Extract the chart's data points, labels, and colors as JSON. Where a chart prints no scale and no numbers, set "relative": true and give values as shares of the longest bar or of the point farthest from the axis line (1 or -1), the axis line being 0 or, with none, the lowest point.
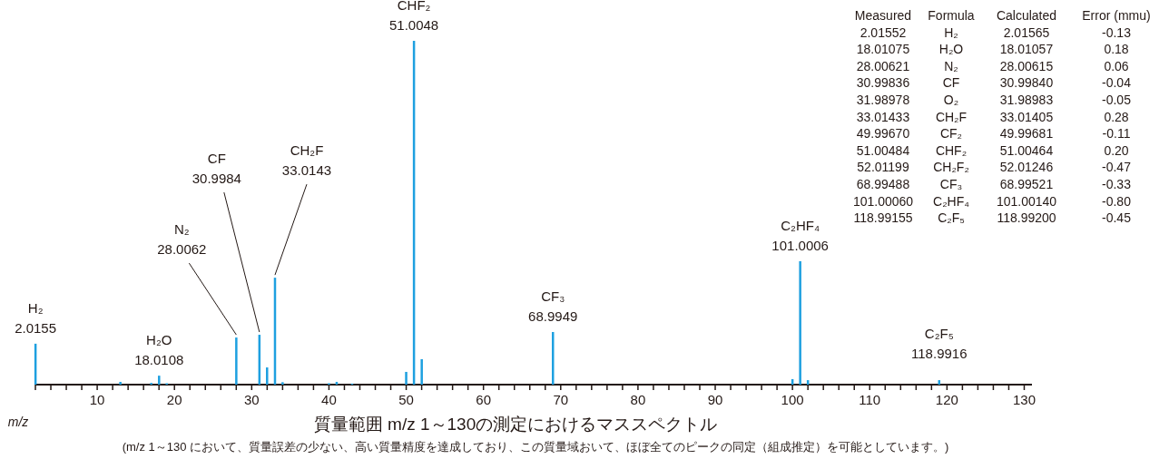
{
  "chart_data": {
    "type": "bar",
    "title": "質量範囲 m/z 1～130の測定におけるマススペクトル",
    "subtitle": "(m/z 1～130 において、質量誤差の少ない、高い質量精度を達成しており、この質量域おいて、ほぼ全てのピークの同定（組成推定）を可能としています。)",
    "xlabel": "m/z",
    "relative": true,
    "color": "#1ea0e0",
    "x": [
      2.01552,
      13,
      17,
      18.01075,
      19,
      28.00621,
      30.99836,
      31.98978,
      33.01433,
      34,
      40,
      41,
      43,
      49.9967,
      51.00484,
      52.01199,
      68.99488,
      100,
      101.0006,
      102,
      118.99155
    ],
    "values": [
      0.119,
      0.008,
      0.005,
      0.026,
      0.004,
      0.137,
      0.145,
      0.05,
      0.311,
      0.007,
      0.004,
      0.008,
      0.003,
      0.037,
      1,
      0.074,
      0.153,
      0.016,
      0.359,
      0.013,
      0.013
    ],
    "xlim": [
      2,
      131
    ],
    "xticks": [
      {
        "value": 2,
        "label": null
      },
      {
        "value": 4,
        "label": null
      },
      {
        "value": 6,
        "label": null
      },
      {
        "value": 8,
        "label": null
      },
      10,
      {
        "value": 12,
        "label": null
      },
      {
        "value": 14,
        "label": null
      },
      {
        "value": 16,
        "label": null
      },
      {
        "value": 18,
        "label": null
      },
      20,
      {
        "value": 22,
        "label": null
      },
      {
        "value": 24,
        "label": null
      },
      {
        "value": 26,
        "label": null
      },
      {
        "value": 28,
        "label": null
      },
      30,
      {
        "value": 32,
        "label": null
      },
      {
        "value": 34,
        "label": null
      },
      {
        "value": 36,
        "label": null
      },
      {
        "value": 38,
        "label": null
      },
      40,
      {
        "value": 42,
        "label": null
      },
      {
        "value": 44,
        "label": null
      },
      {
        "value": 46,
        "label": null
      },
      {
        "value": 48,
        "label": null
      },
      50,
      {
        "value": 52,
        "label": null
      },
      {
        "value": 54,
        "label": null
      },
      {
        "value": 56,
        "label": null
      },
      {
        "value": 58,
        "label": null
      },
      60,
      {
        "value": 62,
        "label": null
      },
      {
        "value": 64,
        "label": null
      },
      {
        "value": 66,
        "label": null
      },
      {
        "value": 68,
        "label": null
      },
      70,
      {
        "value": 72,
        "label": null
      },
      {
        "value": 74,
        "label": null
      },
      {
        "value": 76,
        "label": null
      },
      {
        "value": 78,
        "label": null
      },
      80,
      {
        "value": 82,
        "label": null
      },
      {
        "value": 84,
        "label": null
      },
      {
        "value": 86,
        "label": null
      },
      {
        "value": 88,
        "label": null
      },
      90,
      {
        "value": 92,
        "label": null
      },
      {
        "value": 94,
        "label": null
      },
      {
        "value": 96,
        "label": null
      },
      {
        "value": 98,
        "label": null
      },
      100,
      {
        "value": 102,
        "label": null
      },
      {
        "value": 104,
        "label": null
      },
      {
        "value": 106,
        "label": null
      },
      {
        "value": 108,
        "label": null
      },
      110,
      {
        "value": 112,
        "label": null
      },
      {
        "value": 114,
        "label": null
      },
      {
        "value": 116,
        "label": null
      },
      {
        "value": 118,
        "label": null
      },
      120,
      {
        "value": 122,
        "label": null
      },
      {
        "value": 124,
        "label": null
      },
      {
        "value": 126,
        "label": null
      },
      {
        "value": 128,
        "label": null
      },
      130
    ],
    "annotations": [
      {
        "text": "H₂\n2.0155",
        "x": 2.01552,
        "y": 0.119
      },
      {
        "text": "H₂O\n18.0108",
        "x": 18.01075,
        "y": 0.026
      },
      {
        "text": "N₂\n28.0062",
        "x": 28.00621,
        "y": 0.137
      },
      {
        "text": "CF\n30.9984",
        "x": 30.99836,
        "y": 0.145
      },
      {
        "text": "CH₂F\n33.0143",
        "x": 33.01433,
        "y": 0.311
      },
      {
        "text": "CHF₂\n51.0048",
        "x": 51.00484,
        "y": 1
      },
      {
        "text": "CF₃\n68.9949",
        "x": 68.99488,
        "y": 0.153
      },
      {
        "text": "C₂HF₄\n101.0006",
        "x": 101.0006,
        "y": 0.359
      },
      {
        "text": "C₂F₅\n118.9916",
        "x": 118.99155,
        "y": 0.013
      },
      "Measured\tFormula\tCalculated\tError (mmu)",
      "2.01552\tH₂\t2.01565\t-0.13",
      "18.01075\tH₂O\t18.01057\t0.18",
      "28.00621\tN₂\t28.00615\t0.06",
      "30.99836\tCF\t30.99840\t-0.04",
      "31.98978\tO₂\t31.98983\t-0.05",
      "33.01433\tCH₂F\t33.01405\t0.28",
      "49.99670\tCF₂\t49.99681\t-0.11",
      "51.00484\tCHF₂\t51.00464\t0.20",
      "52.01199\tCH₂F₂\t52.01246\t-0.47",
      "68.99488\tCF₃\t68.99521\t-0.33",
      "101.00060\tC₂HF₄\t101.00140\t-0.80",
      "118.99155\tC₂F₅\t118.99200\t-0.45"
    ]
  }
}
